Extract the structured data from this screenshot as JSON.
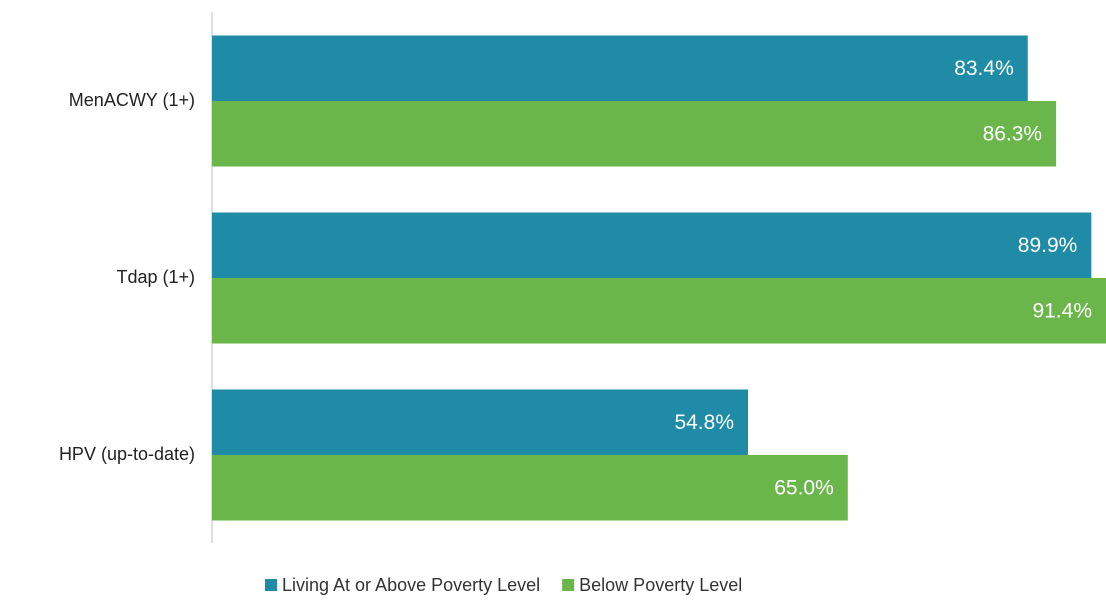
{
  "chart_data": {
    "type": "barh",
    "categories": [
      "MenACWY (1+)",
      "Tdap (1+)",
      "HPV (up-to-date)"
    ],
    "series": [
      {
        "name": "Living At or Above Poverty Level",
        "color": "#1f8ba6",
        "values": [
          83.4,
          89.9,
          54.8
        ],
        "value_labels": [
          "83.4%",
          "89.9%",
          "54.8%"
        ]
      },
      {
        "name": "Below Poverty Level",
        "color": "#6ab64a",
        "values": [
          86.3,
          91.4,
          65.0
        ],
        "value_labels": [
          "86.3%",
          "91.4%",
          "65.0%"
        ]
      }
    ],
    "legend": "bottom"
  }
}
